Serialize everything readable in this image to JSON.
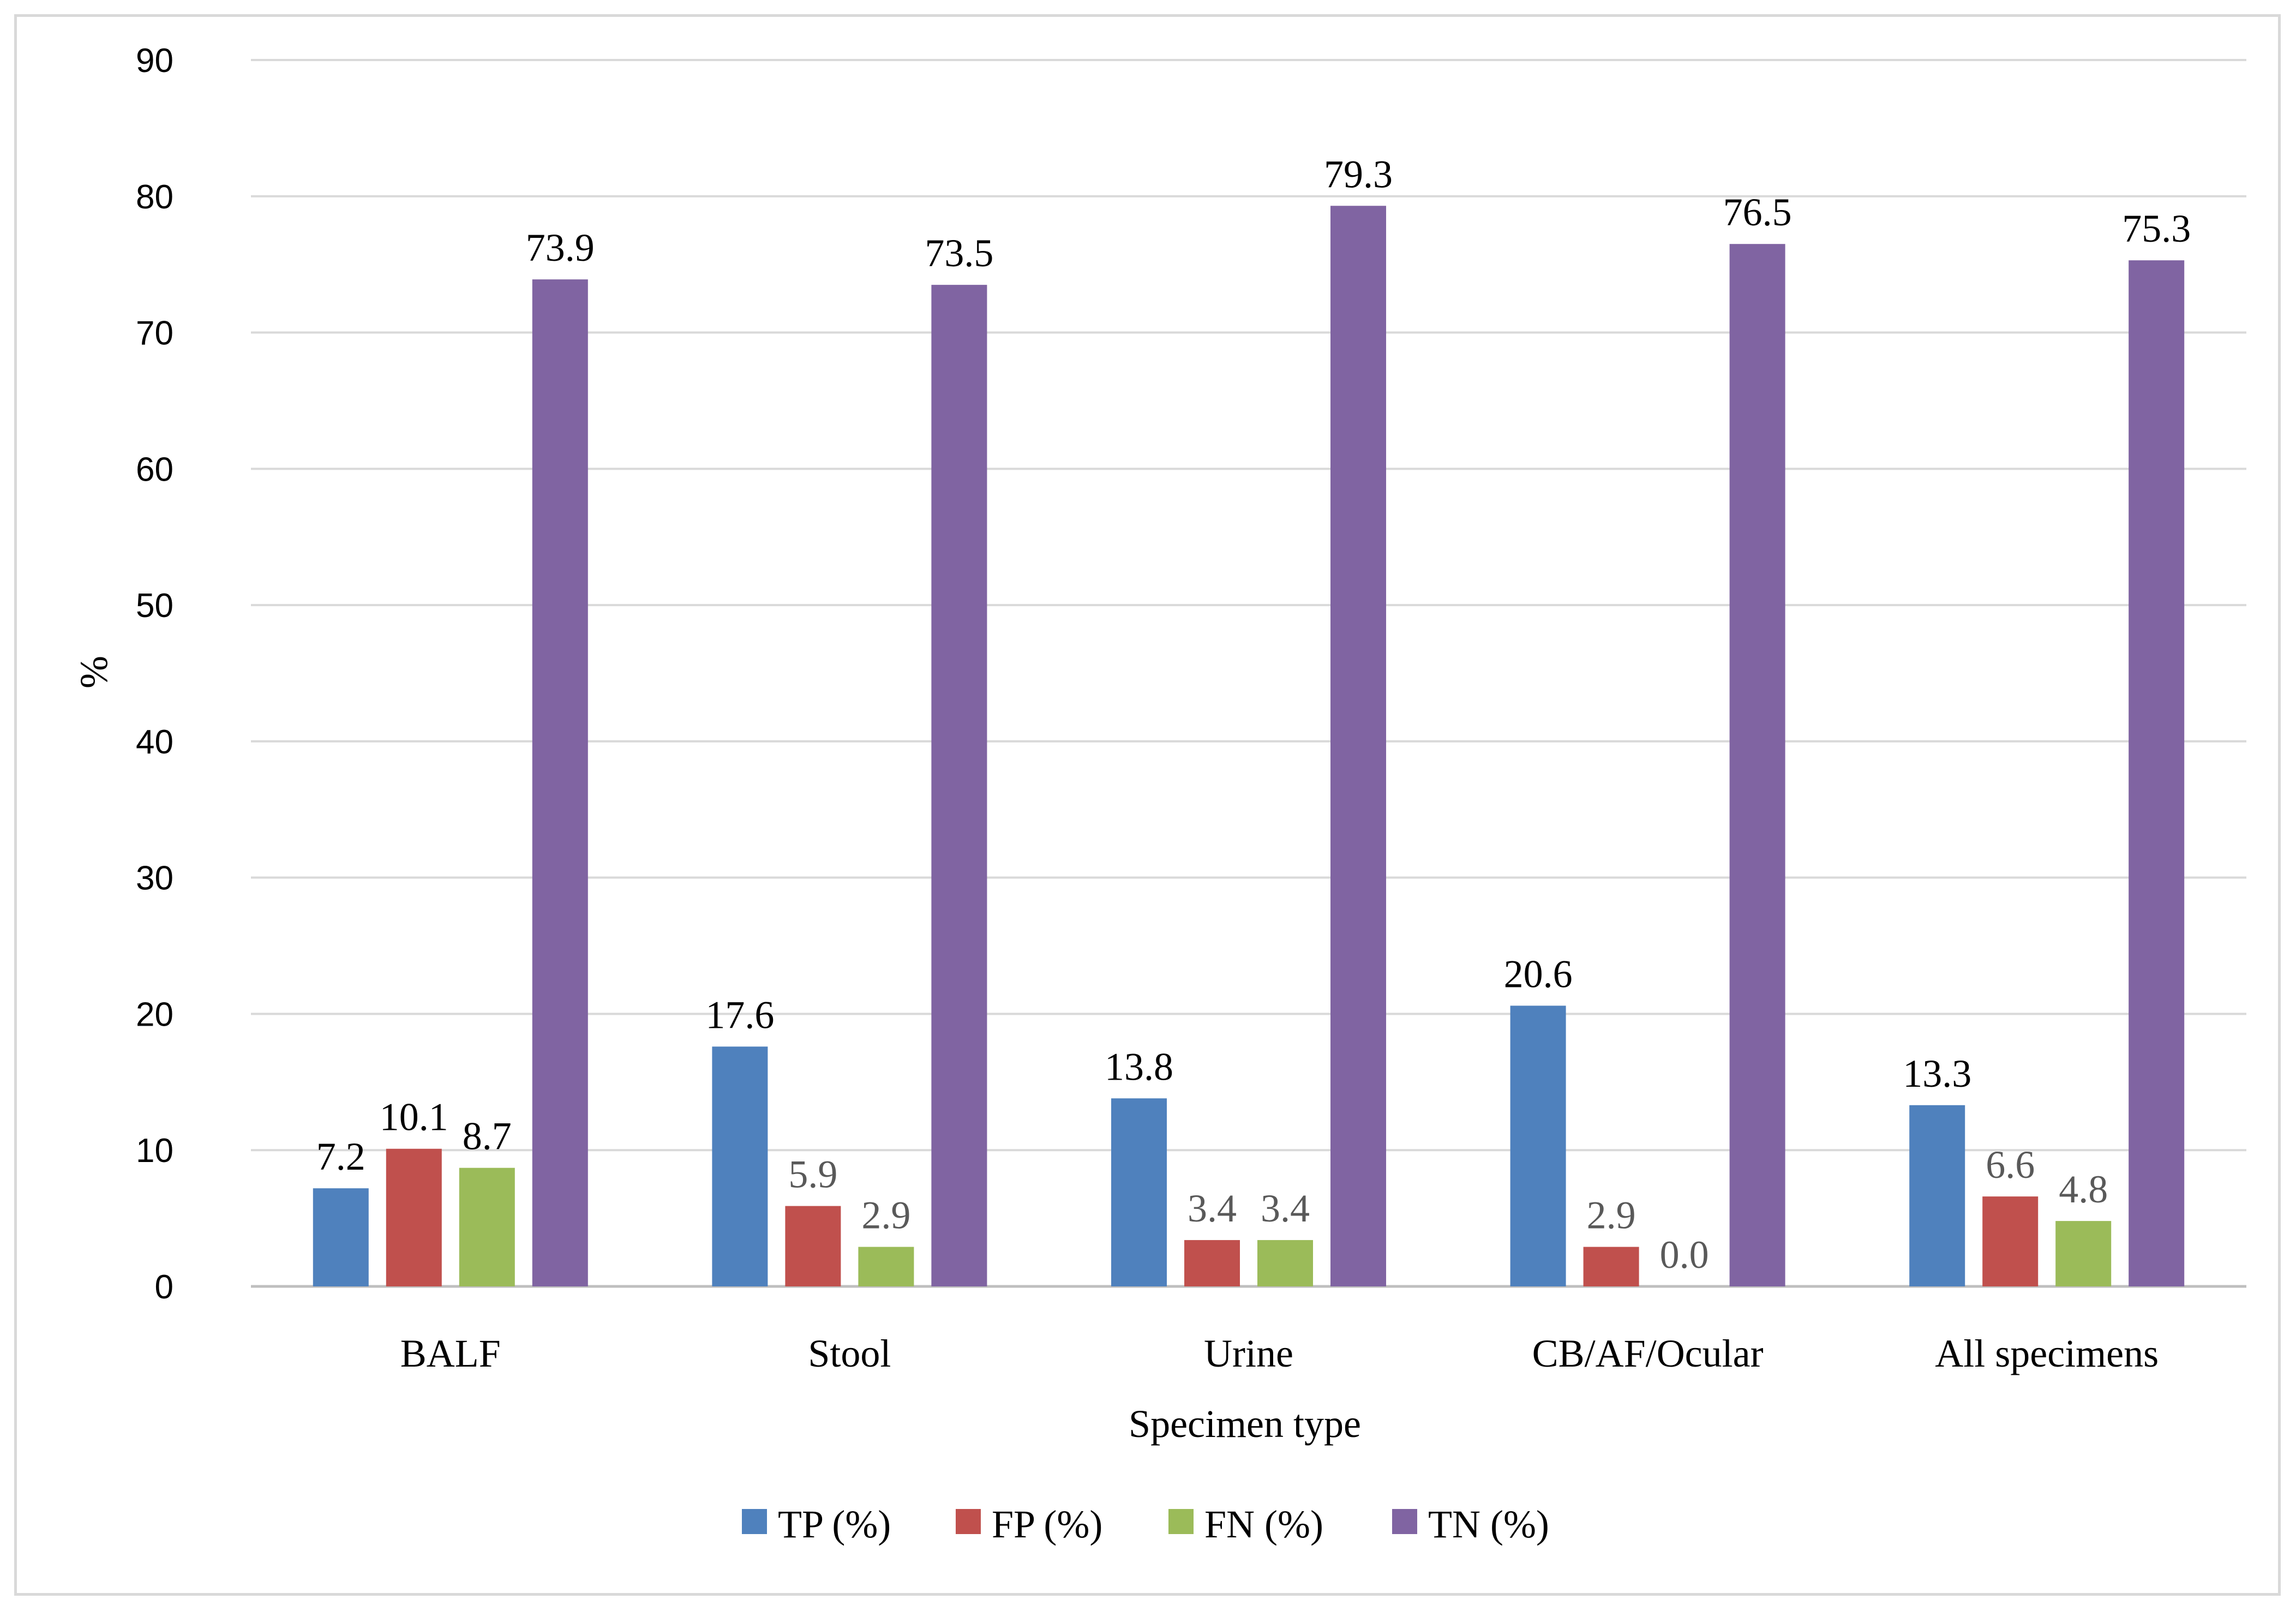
{
  "chart_data": {
    "type": "bar",
    "categories": [
      "BALF",
      "Stool",
      "Urine",
      "CB/AF/Ocular",
      "All specimens"
    ],
    "series": [
      {
        "name": "TP (%)",
        "color": "#4f81bd",
        "values": [
          7.2,
          17.6,
          13.8,
          20.6,
          13.3
        ],
        "labels": [
          "7.2",
          "17.6",
          "13.8",
          "20.6",
          "13.3"
        ]
      },
      {
        "name": "FP (%)",
        "color": "#c0504d",
        "values": [
          10.1,
          5.9,
          3.4,
          2.9,
          6.6
        ],
        "labels": [
          "10.1",
          "5.9",
          "3.4",
          "2.9",
          "6.6"
        ]
      },
      {
        "name": "FN (%)",
        "color": "#9bbb59",
        "values": [
          8.7,
          2.9,
          3.4,
          0.0,
          4.8
        ],
        "labels": [
          "8.7",
          "2.9",
          "3.4",
          "0.0",
          "4.8"
        ]
      },
      {
        "name": "TN (%)",
        "color": "#8064a2",
        "values": [
          73.9,
          73.5,
          79.3,
          76.5,
          75.3
        ],
        "labels": [
          "73.9",
          "73.5",
          "79.3",
          "76.5",
          "75.3"
        ]
      }
    ],
    "xlabel": "Specimen type",
    "ylabel": "%",
    "ylim": [
      0,
      90
    ],
    "yticks": [
      "0",
      "10",
      "20",
      "30",
      "40",
      "50",
      "60",
      "70",
      "80",
      "90"
    ],
    "grid": true,
    "legend_position": "bottom"
  },
  "colors": {
    "gridline": "#d9d9d9",
    "axis_line": "#bfbfbf",
    "frame_border": "#d9d9d9",
    "label_dark": "#000000",
    "label_muted": "#595959"
  }
}
